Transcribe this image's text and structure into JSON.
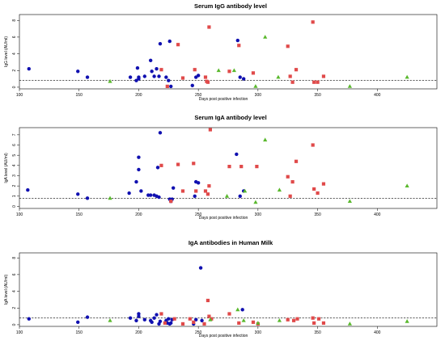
{
  "chart_data": [
    {
      "type": "scatter",
      "title": "Serum IgG antibody level",
      "xlabel": "Days post positive infection",
      "ylabel": "IgG level (AU/ml)",
      "xlim": [
        100,
        450
      ],
      "ylim": [
        -0.2,
        8.7
      ],
      "xticks": [
        100,
        150,
        200,
        250,
        300,
        350,
        400
      ],
      "yticks": [
        0,
        2,
        4,
        6,
        8
      ],
      "threshold": 0.8,
      "grid": false,
      "series": [
        {
          "marker": "circle",
          "color": "#1010b0",
          "x": [
            108,
            149,
            157,
            193,
            198,
            199,
            200,
            200,
            205,
            210,
            211,
            213,
            215,
            217,
            218,
            223,
            225,
            226,
            227,
            245,
            248,
            250,
            283,
            285,
            288
          ],
          "y": [
            2.2,
            1.9,
            1.2,
            1.2,
            0.8,
            2.3,
            1.2,
            1.0,
            1.3,
            3.2,
            1.9,
            1.3,
            2.2,
            1.3,
            5.2,
            1.2,
            0.8,
            5.5,
            0.1,
            0.2,
            1.2,
            1.4,
            5.6,
            1.2,
            1.0
          ]
        },
        {
          "marker": "square",
          "color": "#e04a4a",
          "x": [
            219,
            224,
            233,
            237,
            247,
            256,
            257,
            258,
            259,
            276,
            284,
            296,
            325,
            327,
            329,
            332,
            346,
            347,
            350,
            355
          ],
          "y": [
            2.1,
            0.1,
            5.1,
            1.1,
            2.1,
            1.2,
            0.7,
            0.6,
            7.2,
            1.9,
            5.0,
            1.7,
            4.9,
            1.3,
            0.6,
            2.1,
            7.8,
            0.6,
            0.6,
            1.3
          ]
        },
        {
          "marker": "triangle",
          "color": "#59b82c",
          "x": [
            176,
            267,
            280,
            298,
            306,
            317,
            377,
            425
          ],
          "y": [
            0.7,
            2.0,
            2.0,
            0.1,
            6.0,
            1.2,
            0.1,
            1.2
          ]
        }
      ]
    },
    {
      "type": "scatter",
      "title": "Serum IgA antibody level",
      "xlabel": "Days post positive infection",
      "ylabel": "IgA level (AU/ml)",
      "xlim": [
        100,
        450
      ],
      "ylim": [
        -0.2,
        7.7
      ],
      "xticks": [
        100,
        150,
        200,
        250,
        300,
        350,
        400
      ],
      "yticks": [
        0,
        1,
        2,
        3,
        4,
        5,
        6,
        7
      ],
      "threshold": 0.8,
      "grid": false,
      "series": [
        {
          "marker": "circle",
          "color": "#1010b0",
          "x": [
            107,
            149,
            157,
            192,
            198,
            200,
            200,
            202,
            208,
            210,
            213,
            215,
            216,
            217,
            218,
            226,
            227,
            228,
            229,
            247,
            248,
            250,
            282,
            285,
            288
          ],
          "y": [
            1.6,
            1.2,
            0.8,
            1.3,
            2.4,
            4.8,
            3.6,
            1.5,
            1.1,
            1.1,
            1.1,
            1.0,
            3.8,
            0.9,
            7.2,
            0.7,
            0.5,
            0.7,
            1.8,
            1.0,
            2.4,
            2.3,
            5.1,
            1.0,
            1.5
          ]
        },
        {
          "marker": "square",
          "color": "#e04a4a",
          "x": [
            219,
            227,
            233,
            237,
            246,
            248,
            256,
            258,
            259,
            260,
            276,
            286,
            299,
            325,
            327,
            329,
            332,
            346,
            347,
            350,
            355
          ],
          "y": [
            4.0,
            0.5,
            4.1,
            1.5,
            4.2,
            1.5,
            1.5,
            1.2,
            2.0,
            7.5,
            3.9,
            3.9,
            3.9,
            2.9,
            1.0,
            2.4,
            4.4,
            6.0,
            1.7,
            1.3,
            2.2
          ]
        },
        {
          "marker": "triangle",
          "color": "#59b82c",
          "x": [
            176,
            274,
            289,
            298,
            306,
            318,
            377,
            425
          ],
          "y": [
            0.8,
            1.0,
            1.5,
            0.4,
            6.5,
            1.6,
            0.5,
            2.0
          ]
        }
      ]
    },
    {
      "type": "scatter",
      "title": "IgA antibodies in Human Milk",
      "xlabel": "Days post positive infection",
      "ylabel": "IgA level (AU/ml)",
      "xlim": [
        100,
        450
      ],
      "ylim": [
        -0.2,
        8.6
      ],
      "xticks": [
        100,
        150,
        200,
        250,
        300,
        350,
        400
      ],
      "yticks": [
        0,
        2,
        4,
        6,
        8
      ],
      "threshold": 0.8,
      "grid": false,
      "series": [
        {
          "marker": "circle",
          "color": "#1010b0",
          "x": [
            108,
            149,
            157,
            193,
            198,
            200,
            200,
            205,
            210,
            211,
            213,
            215,
            217,
            218,
            223,
            224,
            225,
            226,
            227,
            228,
            246,
            248,
            252,
            253,
            287
          ],
          "y": [
            0.7,
            0.3,
            0.9,
            0.8,
            0.5,
            1.3,
            1.0,
            0.6,
            0.5,
            0.3,
            0.8,
            1.2,
            0.1,
            0.4,
            0.5,
            0.2,
            0.7,
            0.1,
            0.2,
            0.6,
            0.1,
            0.6,
            6.8,
            0.5,
            1.8
          ]
        },
        {
          "marker": "square",
          "color": "#e04a4a",
          "x": [
            219,
            222,
            230,
            237,
            243,
            246,
            255,
            258,
            259,
            261,
            276,
            284,
            296,
            300,
            325,
            330,
            333,
            346,
            347,
            351,
            355
          ],
          "y": [
            1.3,
            0.2,
            0.7,
            0.1,
            0.7,
            0.3,
            0.1,
            2.9,
            1.0,
            0.7,
            1.3,
            0.2,
            0.3,
            0.1,
            0.6,
            0.5,
            0.7,
            0.8,
            0.2,
            0.7,
            0.2
          ]
        },
        {
          "marker": "triangle",
          "color": "#59b82c",
          "x": [
            176,
            260,
            283,
            288,
            300,
            318,
            377,
            425
          ],
          "y": [
            0.5,
            0.6,
            1.8,
            0.5,
            0.2,
            0.5,
            0.1,
            0.4
          ]
        }
      ]
    }
  ]
}
